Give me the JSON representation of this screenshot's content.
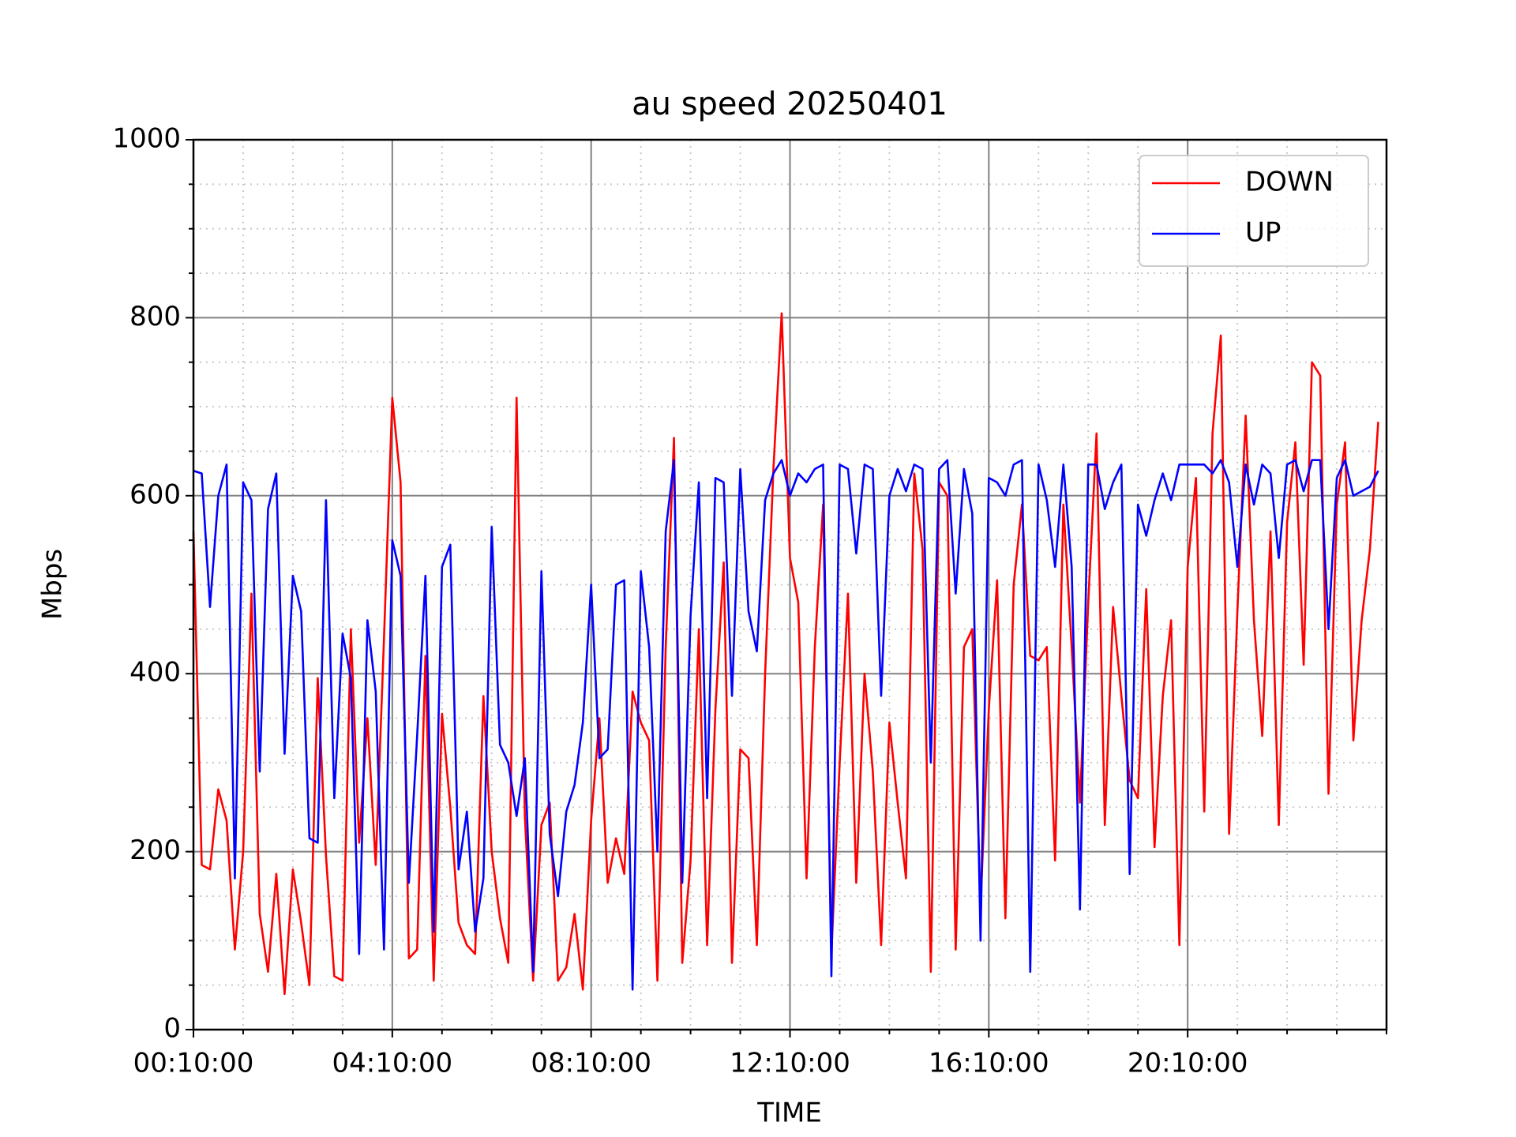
{
  "chart_data": {
    "type": "line",
    "title": "au speed 20250401",
    "xlabel": "TIME",
    "ylabel": "Mbps",
    "x": [
      "00:10:00",
      "00:20:00",
      "00:30:00",
      "00:40:00",
      "00:50:00",
      "01:00:00",
      "01:10:00",
      "01:20:00",
      "01:30:00",
      "01:40:00",
      "01:50:00",
      "02:00:00",
      "02:10:00",
      "02:20:00",
      "02:30:00",
      "02:40:00",
      "02:50:00",
      "03:00:00",
      "03:10:00",
      "03:20:00",
      "03:30:00",
      "03:40:00",
      "03:50:00",
      "04:00:00",
      "04:10:00",
      "04:20:00",
      "04:30:00",
      "04:40:00",
      "04:50:00",
      "05:00:00",
      "05:10:00",
      "05:20:00",
      "05:30:00",
      "05:40:00",
      "05:50:00",
      "06:00:00",
      "06:10:00",
      "06:20:00",
      "06:30:00",
      "06:40:00",
      "06:50:00",
      "07:00:00",
      "07:10:00",
      "07:20:00",
      "07:30:00",
      "07:40:00",
      "07:50:00",
      "08:00:00",
      "08:10:00",
      "08:20:00",
      "08:30:00",
      "08:40:00",
      "08:50:00",
      "09:00:00",
      "09:10:00",
      "09:20:00",
      "09:30:00",
      "09:40:00",
      "09:50:00",
      "10:00:00",
      "10:10:00",
      "10:20:00",
      "10:30:00",
      "10:40:00",
      "10:50:00",
      "11:00:00",
      "11:10:00",
      "11:20:00",
      "11:30:00",
      "11:40:00",
      "11:50:00",
      "12:00:00",
      "12:10:00",
      "12:20:00",
      "12:30:00",
      "12:40:00",
      "12:50:00",
      "13:00:00",
      "13:10:00",
      "13:20:00",
      "13:30:00",
      "13:40:00",
      "13:50:00",
      "14:00:00",
      "14:10:00",
      "14:20:00",
      "14:30:00",
      "14:40:00",
      "14:50:00",
      "15:00:00",
      "15:10:00",
      "15:20:00",
      "15:30:00",
      "15:40:00",
      "15:50:00",
      "16:00:00",
      "16:10:00",
      "16:20:00",
      "16:30:00",
      "16:40:00",
      "16:50:00",
      "17:00:00",
      "17:10:00",
      "17:20:00",
      "17:30:00",
      "17:40:00",
      "17:50:00",
      "18:00:00",
      "18:10:00",
      "18:20:00",
      "18:30:00",
      "18:40:00",
      "18:50:00",
      "19:00:00",
      "19:10:00",
      "19:20:00",
      "19:30:00",
      "19:40:00",
      "19:50:00",
      "20:00:00",
      "20:10:00",
      "20:20:00",
      "20:30:00",
      "20:40:00",
      "20:50:00",
      "21:00:00",
      "21:10:00",
      "21:20:00",
      "21:30:00",
      "21:40:00",
      "21:50:00",
      "22:00:00",
      "22:10:00",
      "22:20:00",
      "22:30:00",
      "22:40:00",
      "22:50:00",
      "23:00:00",
      "23:10:00",
      "23:20:00",
      "23:30:00",
      "23:40:00",
      "23:50:00",
      "24:00:00"
    ],
    "series": [
      {
        "name": "DOWN",
        "color": "#ff0000",
        "values": [
          560,
          185,
          180,
          270,
          235,
          90,
          200,
          490,
          130,
          65,
          175,
          40,
          180,
          120,
          50,
          395,
          195,
          60,
          55,
          450,
          210,
          350,
          185,
          440,
          710,
          615,
          80,
          90,
          420,
          55,
          355,
          250,
          120,
          95,
          85,
          375,
          200,
          125,
          75,
          710,
          240,
          55,
          230,
          255,
          55,
          70,
          130,
          45,
          235,
          350,
          165,
          215,
          175,
          380,
          345,
          325,
          55,
          430,
          665,
          75,
          190,
          450,
          95,
          360,
          525,
          75,
          315,
          305,
          95,
          400,
          630,
          805,
          530,
          480,
          170,
          430,
          590,
          85,
          300,
          490,
          165,
          400,
          290,
          95,
          345,
          255,
          170,
          625,
          540,
          65,
          615,
          600,
          90,
          430,
          450,
          140,
          360,
          505,
          125,
          500,
          590,
          420,
          415,
          430,
          190,
          590,
          430,
          255,
          480,
          670,
          230,
          475,
          375,
          280,
          260,
          495,
          205,
          375,
          460,
          95,
          520,
          620,
          245,
          670,
          780,
          220,
          470,
          690,
          460,
          330,
          560,
          230,
          570,
          660,
          410,
          750,
          735,
          265,
          590,
          660,
          325,
          460,
          540,
          683
        ]
      },
      {
        "name": "UP",
        "color": "#0000ff",
        "values": [
          628,
          625,
          475,
          600,
          635,
          170,
          615,
          595,
          290,
          585,
          625,
          310,
          510,
          470,
          215,
          210,
          595,
          260,
          445,
          395,
          85,
          460,
          380,
          90,
          550,
          510,
          165,
          330,
          510,
          110,
          520,
          545,
          180,
          245,
          110,
          170,
          565,
          320,
          300,
          240,
          305,
          65,
          515,
          220,
          150,
          245,
          275,
          345,
          500,
          305,
          315,
          500,
          505,
          45,
          515,
          430,
          200,
          560,
          640,
          165,
          465,
          615,
          260,
          620,
          615,
          375,
          630,
          470,
          425,
          595,
          625,
          640,
          600,
          625,
          615,
          630,
          635,
          60,
          635,
          630,
          535,
          635,
          630,
          375,
          600,
          630,
          605,
          635,
          630,
          300,
          630,
          640,
          490,
          630,
          580,
          100,
          620,
          615,
          600,
          635,
          640,
          65,
          635,
          595,
          520,
          635,
          520,
          135,
          635,
          635,
          585,
          615,
          635,
          175,
          590,
          555,
          595,
          625,
          595,
          635,
          635,
          635,
          635,
          625,
          640,
          615,
          520,
          635,
          590,
          635,
          625,
          530,
          635,
          640,
          605,
          640,
          640,
          450,
          620,
          640,
          600,
          605,
          610,
          628
        ]
      }
    ],
    "xlim": [
      "00:10:00",
      "24:10:00"
    ],
    "xticks": [
      "00:10:00",
      "04:10:00",
      "08:10:00",
      "12:10:00",
      "16:10:00",
      "20:10:00"
    ],
    "xminorticks": [
      "01:10:00",
      "02:10:00",
      "03:10:00",
      "05:10:00",
      "06:10:00",
      "07:10:00",
      "09:10:00",
      "10:10:00",
      "11:10:00",
      "13:10:00",
      "14:10:00",
      "15:10:00",
      "17:10:00",
      "18:10:00",
      "19:10:00",
      "21:10:00",
      "22:10:00",
      "23:10:00",
      "24:10:00"
    ],
    "ylim": [
      0,
      1000
    ],
    "yticks": [
      0,
      200,
      400,
      600,
      800,
      1000
    ],
    "yminorticks": [
      50,
      100,
      150,
      250,
      300,
      350,
      450,
      500,
      550,
      650,
      700,
      750,
      850,
      900,
      950
    ],
    "grid": true,
    "legend": "upper right"
  }
}
